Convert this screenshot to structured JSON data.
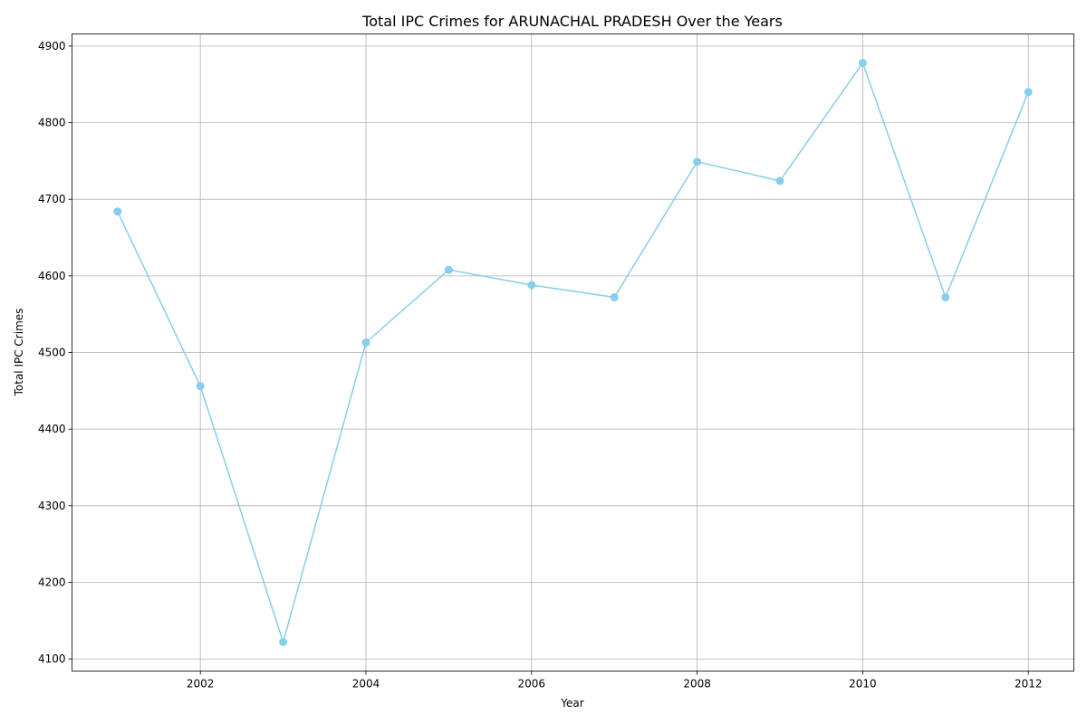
{
  "chart_data": {
    "type": "line",
    "title": "Total IPC Crimes for ARUNACHAL PRADESH Over the Years",
    "xlabel": "Year",
    "ylabel": "Total IPC Crimes",
    "x": [
      2001,
      2002,
      2003,
      2004,
      2005,
      2006,
      2007,
      2008,
      2009,
      2010,
      2011,
      2012
    ],
    "series": [
      {
        "values": [
          4684,
          4456,
          4122,
          4513,
          4608,
          4588,
          4572,
          4749,
          4724,
          4878,
          4572,
          4840
        ],
        "color": "#87ceeb",
        "marker": "circle"
      }
    ],
    "xlim": [
      2000.45,
      2012.55
    ],
    "ylim": [
      4084.2,
      4915.8
    ],
    "xticks": [
      2002,
      2004,
      2006,
      2008,
      2010,
      2012
    ],
    "yticks": [
      4100,
      4200,
      4300,
      4400,
      4500,
      4600,
      4700,
      4800,
      4900
    ],
    "grid": true,
    "legend": "none"
  }
}
